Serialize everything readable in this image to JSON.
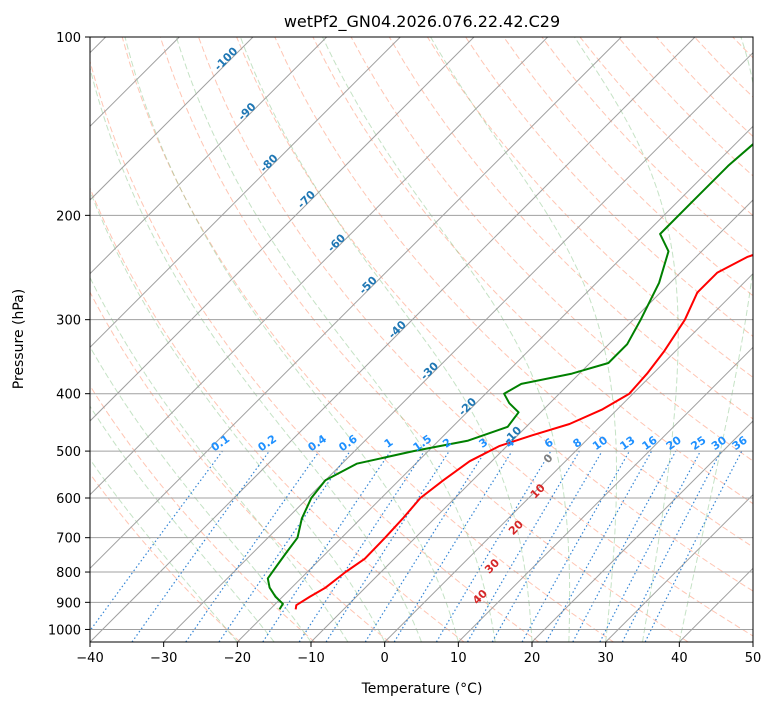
{
  "chart_data": {
    "type": "line",
    "title": "wetPf2_GN04.2026.076.22.42.C29",
    "xlabel": "Temperature (°C)",
    "ylabel": "Pressure (hPa)",
    "xlim": [
      -40,
      50
    ],
    "ylim": [
      1050,
      100
    ],
    "y_scale": "log",
    "grid": true,
    "x_ticks": [
      -40,
      -30,
      -20,
      -10,
      0,
      10,
      20,
      30,
      40,
      50
    ],
    "y_ticks": [
      100,
      200,
      300,
      400,
      500,
      600,
      700,
      800,
      900,
      1000
    ],
    "dry_adiabat_labels": [
      "-100",
      "-90",
      "-80",
      "-70",
      "-60",
      "-50",
      "-40",
      "-30",
      "-20",
      "-10"
    ],
    "moist_adiabat_labels": [
      "0",
      "10",
      "20",
      "30",
      "40"
    ],
    "mixing_ratio_labels": [
      "0.1",
      "0.2",
      "0.4",
      "0.6",
      "1",
      "1.5",
      "2",
      "3",
      "4",
      "6",
      "8",
      "10",
      "13",
      "16",
      "20",
      "25",
      "30",
      "36"
    ],
    "series": [
      {
        "color": "#ff0000",
        "points": [
          [
            -16.5,
            925
          ],
          [
            -17.0,
            910
          ],
          [
            -16.3,
            880
          ],
          [
            -15.4,
            850
          ],
          [
            -14.8,
            800
          ],
          [
            -14.0,
            760
          ],
          [
            -14.1,
            700
          ],
          [
            -14.3,
            650
          ],
          [
            -14.7,
            600
          ],
          [
            -14.0,
            560
          ],
          [
            -13.0,
            520
          ],
          [
            -11.0,
            490
          ],
          [
            -8.0,
            470
          ],
          [
            -4.5,
            450
          ],
          [
            -2.0,
            425
          ],
          [
            -0.5,
            400
          ],
          [
            -0.8,
            370
          ],
          [
            -1.5,
            340
          ],
          [
            -3.0,
            300
          ],
          [
            -5.0,
            270
          ],
          [
            -5.0,
            250
          ],
          [
            -3.0,
            235
          ],
          [
            0.0,
            225
          ],
          [
            6.0,
            200
          ],
          [
            12.0,
            175
          ],
          [
            16.0,
            160
          ],
          [
            21.0,
            140
          ],
          [
            26.0,
            120
          ],
          [
            31.0,
            100
          ]
        ]
      },
      {
        "color": "#008000",
        "points": [
          [
            -18.7,
            925
          ],
          [
            -19.0,
            905
          ],
          [
            -21.0,
            880
          ],
          [
            -23.0,
            850
          ],
          [
            -24.5,
            820
          ],
          [
            -25.0,
            780
          ],
          [
            -25.5,
            740
          ],
          [
            -26.0,
            700
          ],
          [
            -28.0,
            650
          ],
          [
            -29.5,
            600
          ],
          [
            -30.0,
            560
          ],
          [
            -28.0,
            525
          ],
          [
            -22.0,
            500
          ],
          [
            -16.0,
            480
          ],
          [
            -12.5,
            455
          ],
          [
            -13.0,
            430
          ],
          [
            -15.5,
            415
          ],
          [
            -17.5,
            400
          ],
          [
            -16.5,
            385
          ],
          [
            -11.0,
            370
          ],
          [
            -7.5,
            355
          ],
          [
            -7.5,
            330
          ],
          [
            -9.0,
            300
          ],
          [
            -11.5,
            260
          ],
          [
            -14.5,
            230
          ],
          [
            -18.0,
            215
          ],
          [
            -18.0,
            190
          ],
          [
            -18.0,
            165
          ],
          [
            -17.5,
            150
          ],
          [
            -13.5,
            135
          ],
          [
            -10.0,
            120
          ],
          [
            -7.0,
            100
          ]
        ]
      }
    ]
  }
}
